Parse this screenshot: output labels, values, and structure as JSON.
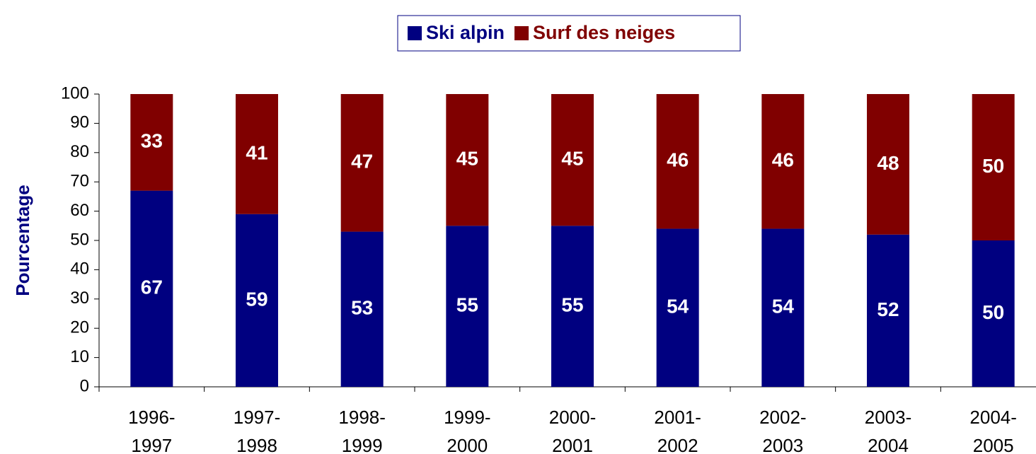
{
  "chart_data": {
    "type": "stacked_bar",
    "y_label": "Pourcentage",
    "categories": [
      "1996-1997",
      "1997-1998",
      "1998-1999",
      "1999-2000",
      "2000-2001",
      "2001-2002",
      "2002-2003",
      "2003-2004",
      "2004-2005"
    ],
    "series": [
      {
        "name": "Ski alpin",
        "color": "#000080",
        "values": [
          67,
          59,
          53,
          55,
          55,
          54,
          54,
          52,
          50
        ]
      },
      {
        "name": "Surf des neiges",
        "color": "#800000",
        "values": [
          33,
          41,
          47,
          45,
          45,
          46,
          46,
          48,
          50
        ]
      }
    ],
    "ylim": [
      0,
      100
    ],
    "yticks": [
      0,
      10,
      20,
      30,
      40,
      50,
      60,
      70,
      80,
      90,
      100
    ],
    "grid": false,
    "legend": "top"
  }
}
